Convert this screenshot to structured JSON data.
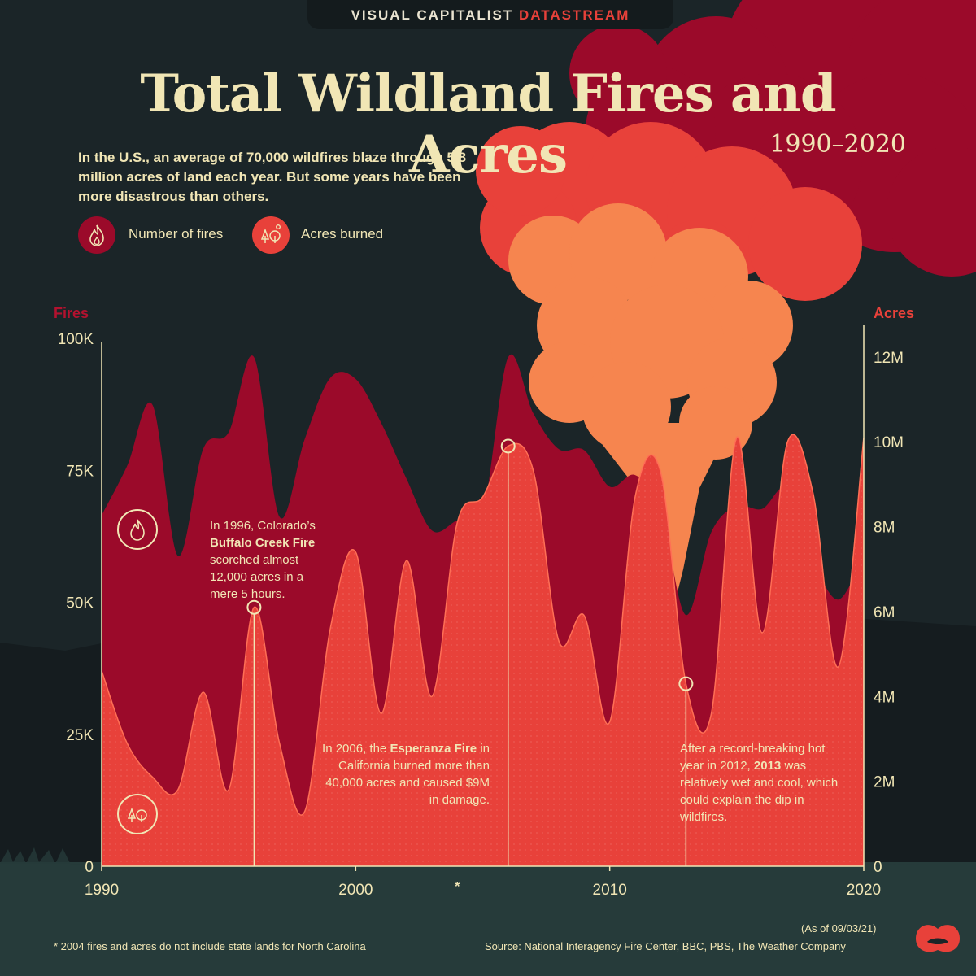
{
  "brand": {
    "prefix": "VISUAL CAPITALIST",
    "accent": "DATASTREAM"
  },
  "title": "Total Wildland Fires and Acres",
  "years": "1990–2020",
  "intro": "In the U.S., an average of 70,000 wildfires blaze through 5.8 million acres of land each year. But some years have been more disastrous than others.",
  "legend": [
    {
      "label": "Number of fires",
      "color": "#9b0a2a",
      "icon": "fire-icon"
    },
    {
      "label": "Acres burned",
      "color": "#e8413a",
      "icon": "trees-icon"
    }
  ],
  "colors": {
    "fires": "#9b0a2a",
    "acres": "#e8413a",
    "background": "#1b2528",
    "text": "#f1e6b5",
    "smoke": "#f6854f"
  },
  "chart_data": {
    "type": "area",
    "title": "Total Wildland Fires and Acres",
    "subtitle": "1990–2020",
    "x": [
      1990,
      1991,
      1992,
      1993,
      1994,
      1995,
      1996,
      1997,
      1998,
      1999,
      2000,
      2001,
      2002,
      2003,
      2004,
      2005,
      2006,
      2007,
      2008,
      2009,
      2010,
      2011,
      2012,
      2013,
      2014,
      2015,
      2016,
      2017,
      2018,
      2019,
      2020
    ],
    "x_ticks": [
      "1990",
      "2000",
      "2010",
      "2020"
    ],
    "x_special": "*",
    "left_axis": {
      "label": "Fires",
      "ticks": [
        "0",
        "25K",
        "50K",
        "75K",
        "100K"
      ],
      "range": [
        0,
        100000
      ]
    },
    "right_axis": {
      "label": "Acres",
      "ticks": [
        "0",
        "2M",
        "4M",
        "6M",
        "8M",
        "10M",
        "12M"
      ],
      "range": [
        0,
        12400000
      ]
    },
    "series": [
      {
        "name": "Number of fires",
        "axis": "left",
        "values": [
          66500,
          75800,
          87400,
          58800,
          79100,
          82200,
          96400,
          66200,
          81000,
          92500,
          92300,
          84000,
          73400,
          63600,
          65500,
          66800,
          96400,
          85700,
          79000,
          78800,
          71900,
          74100,
          67800,
          47600,
          63300,
          68200,
          67700,
          71500,
          58100,
          50500,
          59000
        ]
      },
      {
        "name": "Acres burned",
        "axis": "right",
        "values": [
          4600000,
          2900000,
          2100000,
          1800000,
          4100000,
          1800000,
          6100000,
          2900000,
          1300000,
          5600000,
          7400000,
          3600000,
          7200000,
          4000000,
          8100000,
          8700000,
          9900000,
          9300000,
          5300000,
          5900000,
          3400000,
          8700000,
          9300000,
          4300000,
          3600000,
          10100000,
          5500000,
          10000000,
          8800000,
          4700000,
          10100000
        ]
      }
    ],
    "annotations": [
      {
        "year": 1996,
        "parts": [
          "In 1996, Colorado’s ",
          "Buffalo Creek Fire",
          " scorched almost 12,000 acres in a mere 5 hours."
        ]
      },
      {
        "year": 2006,
        "parts": [
          "In 2006, the ",
          "Esperanza Fire",
          " in California burned more than 40,000 acres and caused $9M in damage."
        ]
      },
      {
        "year": 2013,
        "parts": [
          "After a record-breaking hot year in 2012, ",
          "2013",
          " was relatively wet and cool, which could explain the dip in wildfires."
        ]
      }
    ]
  },
  "footnote": "* 2004 fires and acres do not include state lands for North Carolina",
  "as_of": "(As of 09/03/21)",
  "source": "Source: National Interagency Fire Center, BBC, PBS, The Weather Company"
}
